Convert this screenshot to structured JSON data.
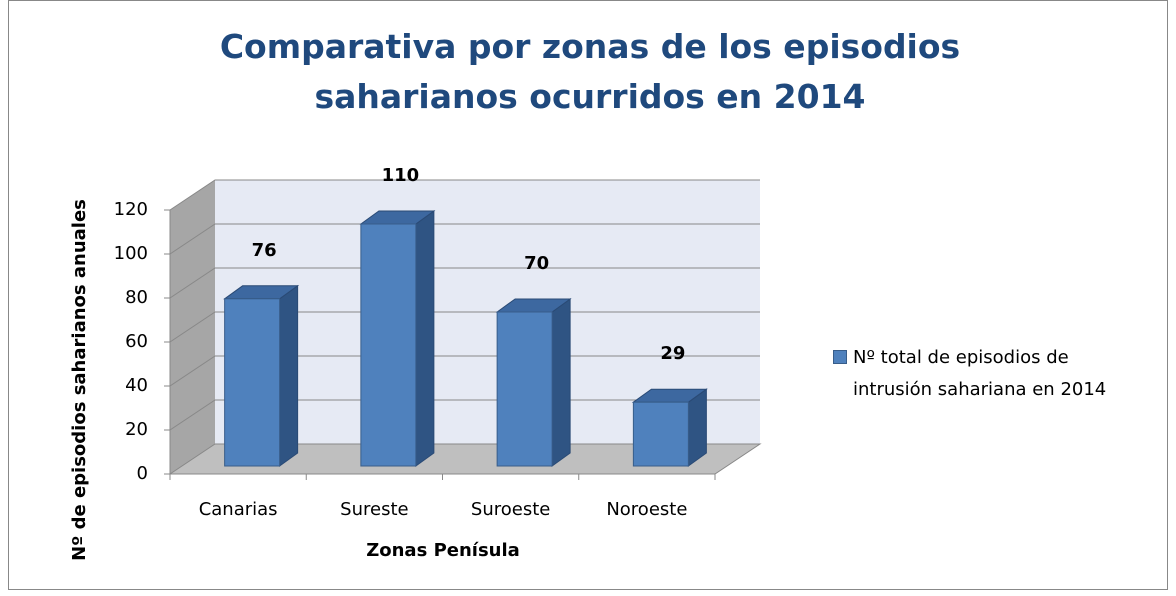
{
  "chart_data": {
    "type": "bar",
    "title": "Comparativa por zonas de los episodios saharianos ocurridos en 2014",
    "x_label": "Zonas Penísula",
    "y_label": "Nº de episodios saharianos anuales",
    "categories": [
      "Canarias",
      "Sureste",
      "Suroeste",
      "Noroeste"
    ],
    "series": [
      {
        "name": "Nº total de episodios de intrusión sahariana en 2014",
        "color": "#4f81bd",
        "values": [
          76,
          110,
          70,
          29
        ]
      }
    ],
    "ylim": [
      0,
      120
    ],
    "yticks": [
      0,
      20,
      40,
      60,
      80,
      100,
      120
    ],
    "grid": true,
    "legend": "right"
  }
}
